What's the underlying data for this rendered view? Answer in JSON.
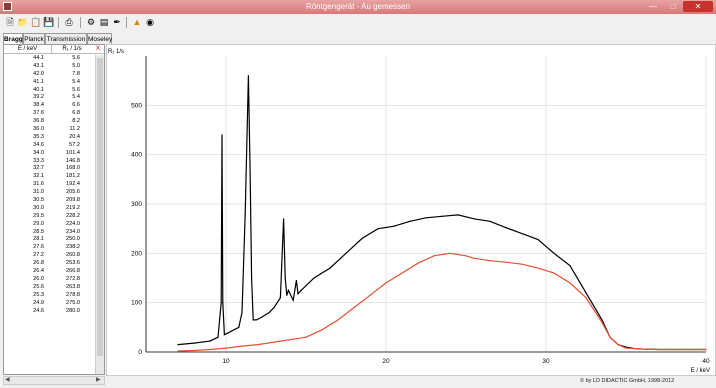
{
  "window": {
    "title": "Röntgengerät - Au gemessen"
  },
  "tabs": [
    {
      "label": "Bragg",
      "active": true
    },
    {
      "label": "Planck",
      "active": false
    },
    {
      "label": "Transmission",
      "active": false
    },
    {
      "label": "Moseley",
      "active": false
    }
  ],
  "table": {
    "col_e": "E / keV",
    "col_r": "R₁ / 1/s",
    "col_x": "X",
    "rows": [
      [
        "44.1",
        "5.6"
      ],
      [
        "43.1",
        "5.0"
      ],
      [
        "42.0",
        "7.8"
      ],
      [
        "41.1",
        "5.4"
      ],
      [
        "40.1",
        "5.6"
      ],
      [
        "39.2",
        "5.4"
      ],
      [
        "38.4",
        "6.6"
      ],
      [
        "37.6",
        "6.8"
      ],
      [
        "36.8",
        "8.2"
      ],
      [
        "36.0",
        "11.2"
      ],
      [
        "35.3",
        "20.4"
      ],
      [
        "34.6",
        "57.2"
      ],
      [
        "34.0",
        "101.4"
      ],
      [
        "33.3",
        "146.8"
      ],
      [
        "32.7",
        "168.0"
      ],
      [
        "32.1",
        "181.2"
      ],
      [
        "31.6",
        "192.4"
      ],
      [
        "31.0",
        "205.6"
      ],
      [
        "30.5",
        "209.8"
      ],
      [
        "30.0",
        "219.2"
      ],
      [
        "29.5",
        "228.2"
      ],
      [
        "29.0",
        "224.0"
      ],
      [
        "28.5",
        "234.0"
      ],
      [
        "28.1",
        "250.0"
      ],
      [
        "27.6",
        "238.2"
      ],
      [
        "27.2",
        "260.8"
      ],
      [
        "26.8",
        "253.6"
      ],
      [
        "26.4",
        "266.8"
      ],
      [
        "26.0",
        "272.8"
      ],
      [
        "25.6",
        "263.8"
      ],
      [
        "25.3",
        "278.8"
      ],
      [
        "24.9",
        "275.0"
      ],
      [
        "24.6",
        "280.0"
      ]
    ]
  },
  "chart_data": {
    "type": "line",
    "ylabel": "R₁ 1/s",
    "xlabel": "E / keV",
    "xlim": [
      5,
      40
    ],
    "ylim": [
      0,
      600
    ],
    "x_ticks": [
      "10",
      "20",
      "30",
      "40"
    ],
    "y_ticks": [
      "0",
      "100",
      "200",
      "300",
      "400",
      "500"
    ],
    "grid": true,
    "series": [
      {
        "color": "#000000",
        "x": [
          7.0,
          8.0,
          9.0,
          9.5,
          9.7,
          9.75,
          9.8,
          9.9,
          10.2,
          10.8,
          11.0,
          11.2,
          11.4,
          11.5,
          11.6,
          11.7,
          11.9,
          12.2,
          12.7,
          13.0,
          13.4,
          13.6,
          13.7,
          13.8,
          13.9,
          14.2,
          14.4,
          14.5,
          14.7,
          15.5,
          16.5,
          17.5,
          18.5,
          19.5,
          20.5,
          21.5,
          22.5,
          23.5,
          24.5,
          25.5,
          26.5,
          27.5,
          28.5,
          29.5,
          30.5,
          31.5,
          32.5,
          33.5,
          34.0,
          34.5,
          35.0,
          35.5,
          36.0,
          37.0,
          38.0,
          39.0,
          40.0
        ],
        "y": [
          15,
          18,
          22,
          30,
          100,
          440,
          100,
          35,
          40,
          50,
          80,
          280,
          560,
          380,
          150,
          65,
          65,
          70,
          80,
          90,
          110,
          270,
          150,
          115,
          125,
          105,
          145,
          118,
          125,
          150,
          170,
          200,
          230,
          250,
          255,
          265,
          272,
          275,
          278,
          270,
          265,
          252,
          240,
          228,
          200,
          175,
          120,
          65,
          30,
          15,
          10,
          7,
          6,
          5,
          5,
          5,
          5
        ]
      },
      {
        "color": "#e5502e",
        "x": [
          7.0,
          8.0,
          9.0,
          10.0,
          11.0,
          12.0,
          13.0,
          14.0,
          15.0,
          16.0,
          17.0,
          18.0,
          19.0,
          20.0,
          21.0,
          22.0,
          23.0,
          24.0,
          24.6,
          25.0,
          25.5,
          26.5,
          27.5,
          28.5,
          29.5,
          30.5,
          31.5,
          32.5,
          33.5,
          34.0,
          34.5,
          35.0,
          36.0,
          37.0,
          38.0,
          39.0,
          40.0
        ],
        "y": [
          2,
          3,
          5,
          8,
          12,
          15,
          20,
          25,
          30,
          45,
          65,
          90,
          115,
          140,
          160,
          180,
          195,
          200,
          197,
          195,
          190,
          185,
          182,
          178,
          170,
          160,
          140,
          110,
          60,
          30,
          15,
          8,
          6,
          5,
          5,
          5,
          5
        ]
      }
    ]
  },
  "footer": {
    "copyright": "© by LD DIDACTIC GmbH, 1998-2012"
  }
}
